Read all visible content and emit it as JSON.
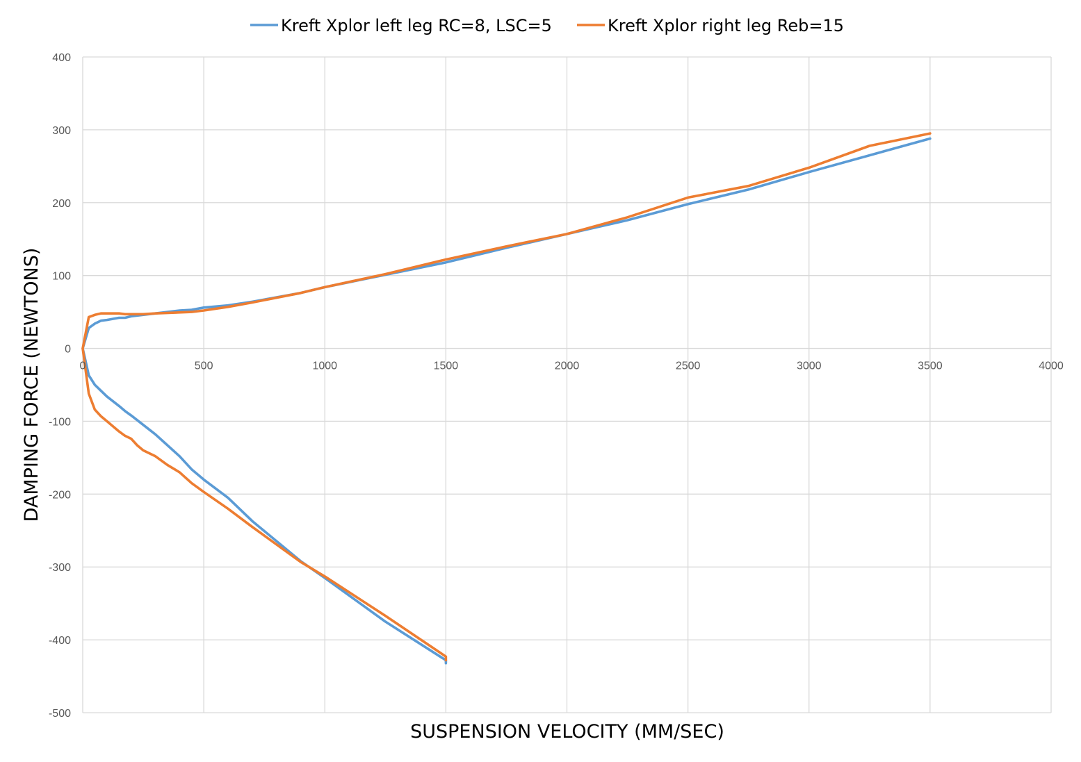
{
  "chart_data": {
    "type": "line",
    "title": "",
    "xlabel": "SUSPENSION VELOCITY (MM/SEC)",
    "ylabel": "DAMPING FORCE (NEWTONS)",
    "xlim": [
      0,
      4000
    ],
    "ylim": [
      -500,
      400
    ],
    "xticks": [
      0,
      500,
      1000,
      1500,
      2000,
      2500,
      3000,
      3500,
      4000
    ],
    "yticks": [
      -500,
      -400,
      -300,
      -200,
      -100,
      0,
      100,
      200,
      300,
      400
    ],
    "xtick_labels": [
      "0",
      "500",
      "1000",
      "1500",
      "2000",
      "2500",
      "3000",
      "3500",
      "4000"
    ],
    "ytick_labels": [
      "-500",
      "-400",
      "-300",
      "-200",
      "-100",
      "0",
      "100",
      "200",
      "300",
      "400"
    ],
    "grid": true,
    "legend_position": "top-center",
    "series": [
      {
        "name": "Kreft Xplor left leg RC=8, LSC=5",
        "color": "#5b9bd5",
        "points": [
          [
            1500,
            -432
          ],
          [
            1500,
            -428
          ],
          [
            1250,
            -375
          ],
          [
            1000,
            -315
          ],
          [
            900,
            -292
          ],
          [
            700,
            -237
          ],
          [
            600,
            -205
          ],
          [
            500,
            -180
          ],
          [
            450,
            -166
          ],
          [
            400,
            -148
          ],
          [
            300,
            -118
          ],
          [
            250,
            -105
          ],
          [
            200,
            -92
          ],
          [
            175,
            -86
          ],
          [
            150,
            -79
          ],
          [
            100,
            -66
          ],
          [
            75,
            -58
          ],
          [
            50,
            -50
          ],
          [
            25,
            -37
          ],
          [
            0,
            0
          ],
          [
            25,
            28
          ],
          [
            50,
            34
          ],
          [
            75,
            38
          ],
          [
            100,
            39
          ],
          [
            150,
            42
          ],
          [
            175,
            42
          ],
          [
            200,
            44
          ],
          [
            300,
            48
          ],
          [
            400,
            52
          ],
          [
            450,
            53
          ],
          [
            500,
            56
          ],
          [
            600,
            59
          ],
          [
            700,
            64
          ],
          [
            900,
            76
          ],
          [
            1000,
            84
          ],
          [
            1250,
            101
          ],
          [
            1500,
            118
          ],
          [
            1750,
            138
          ],
          [
            2000,
            157
          ],
          [
            2250,
            176
          ],
          [
            2500,
            198
          ],
          [
            2750,
            218
          ],
          [
            3000,
            242
          ],
          [
            3250,
            265
          ],
          [
            3500,
            288
          ]
        ]
      },
      {
        "name": "Kreft Xplor right leg Reb=15",
        "color": "#ed7d31",
        "points": [
          [
            1500,
            -428
          ],
          [
            1500,
            -423
          ],
          [
            1250,
            -367
          ],
          [
            1000,
            -313
          ],
          [
            900,
            -293
          ],
          [
            700,
            -245
          ],
          [
            600,
            -220
          ],
          [
            500,
            -197
          ],
          [
            450,
            -185
          ],
          [
            400,
            -170
          ],
          [
            350,
            -160
          ],
          [
            300,
            -148
          ],
          [
            250,
            -140
          ],
          [
            225,
            -133
          ],
          [
            200,
            -124
          ],
          [
            175,
            -120
          ],
          [
            150,
            -114
          ],
          [
            125,
            -107
          ],
          [
            100,
            -100
          ],
          [
            75,
            -93
          ],
          [
            50,
            -84
          ],
          [
            25,
            -62
          ],
          [
            0,
            0
          ],
          [
            25,
            43
          ],
          [
            50,
            46
          ],
          [
            75,
            48
          ],
          [
            100,
            48
          ],
          [
            150,
            48
          ],
          [
            175,
            47
          ],
          [
            200,
            47
          ],
          [
            250,
            47
          ],
          [
            300,
            48
          ],
          [
            450,
            50
          ],
          [
            500,
            52
          ],
          [
            600,
            57
          ],
          [
            700,
            63
          ],
          [
            900,
            76
          ],
          [
            1000,
            84
          ],
          [
            1250,
            102
          ],
          [
            1500,
            122
          ],
          [
            1750,
            140
          ],
          [
            2000,
            157
          ],
          [
            2250,
            180
          ],
          [
            2500,
            207
          ],
          [
            2750,
            223
          ],
          [
            3000,
            248
          ],
          [
            3250,
            278
          ],
          [
            3500,
            295
          ]
        ]
      }
    ]
  }
}
